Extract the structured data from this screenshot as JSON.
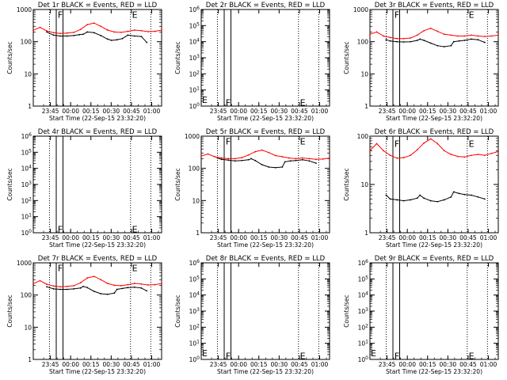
{
  "figure": {
    "x_axis_label": "Start Time (22-Sep-15 23:32:20)",
    "y_axis_label": "Counts/sec",
    "x_tick_labels": [
      "23:45",
      "00:00",
      "00:15",
      "00:30",
      "00:45",
      "01:00"
    ],
    "event_marker_labels": [
      "F",
      "E"
    ],
    "colors": {
      "events": "#000000",
      "lld": "#ff0000",
      "background": "#ffffff"
    }
  },
  "chart_data": [
    {
      "type": "line",
      "title": "Det 1r BLACK = Events, RED = LLD",
      "y_scale": "log",
      "ylim": [
        1,
        1000
      ],
      "y_tick_labels": [
        "1",
        "10",
        "100",
        "1000"
      ],
      "x_unit": "minutes since 23:32:20",
      "xlim": [
        0,
        95
      ],
      "dotted_lines_x": [
        12,
        72,
        87
      ],
      "solid_lines_x": [
        17,
        22
      ],
      "markers": [
        {
          "label": "F",
          "x": 17.5,
          "y": 700
        },
        {
          "label": "E",
          "x": 72.5,
          "y": 700
        }
      ],
      "series": [
        {
          "name": "Events",
          "color": "#000000",
          "x": [
            10,
            15,
            20,
            25,
            30,
            34,
            37,
            40,
            45,
            50,
            55,
            58,
            62,
            66,
            70,
            75,
            80,
            84
          ],
          "y": [
            200,
            160,
            150,
            150,
            155,
            165,
            170,
            200,
            190,
            155,
            120,
            110,
            115,
            125,
            160,
            150,
            145,
            95
          ]
        },
        {
          "name": "LLD",
          "color": "#ff0000",
          "x": [
            0,
            5,
            10,
            15,
            20,
            25,
            30,
            35,
            40,
            45,
            50,
            55,
            60,
            65,
            70,
            75,
            80,
            85,
            90,
            95
          ],
          "y": [
            225,
            280,
            215,
            190,
            180,
            185,
            195,
            240,
            340,
            380,
            300,
            230,
            200,
            195,
            210,
            230,
            220,
            205,
            210,
            230
          ]
        }
      ]
    },
    {
      "type": "line",
      "title": "Det 2r BLACK = Events, RED = LLD",
      "y_scale": "log",
      "ylim": [
        1,
        1000000
      ],
      "y_tick_labels": [
        "10^0",
        "10^1",
        "10^2",
        "10^3",
        "10^4",
        "10^5",
        "10^6"
      ],
      "x_unit": "minutes since 23:32:20",
      "xlim": [
        0,
        95
      ],
      "dotted_lines_x": [
        12,
        72,
        87
      ],
      "solid_lines_x": [
        17,
        22
      ],
      "markers": [
        {
          "label": "F",
          "x": 17.5,
          "y": 1.7
        },
        {
          "label": "E",
          "x": 72.5,
          "y": 1.7
        }
      ],
      "side_markers": [
        "E"
      ],
      "series": []
    },
    {
      "type": "line",
      "title": "Det 3r BLACK = Events, RED = LLD",
      "y_scale": "log",
      "ylim": [
        1,
        1000
      ],
      "y_tick_labels": [
        "1",
        "10",
        "100",
        "1000"
      ],
      "x_unit": "minutes since 23:32:20",
      "xlim": [
        0,
        95
      ],
      "dotted_lines_x": [
        12,
        72,
        87
      ],
      "solid_lines_x": [
        17,
        22
      ],
      "markers": [
        {
          "label": "F",
          "x": 17.5,
          "y": 700
        },
        {
          "label": "E",
          "x": 72.5,
          "y": 700
        }
      ],
      "series": [
        {
          "name": "Events",
          "color": "#000000",
          "x": [
            12,
            15,
            20,
            25,
            30,
            35,
            37,
            40,
            45,
            50,
            55,
            60,
            62,
            66,
            70,
            75,
            80,
            85
          ],
          "y": [
            115,
            105,
            100,
            98,
            100,
            110,
            120,
            110,
            90,
            75,
            70,
            75,
            100,
            105,
            110,
            120,
            115,
            95
          ]
        },
        {
          "name": "LLD",
          "color": "#ff0000",
          "x": [
            0,
            5,
            10,
            15,
            20,
            25,
            30,
            35,
            40,
            45,
            50,
            55,
            60,
            65,
            70,
            75,
            80,
            85,
            90,
            95
          ],
          "y": [
            170,
            200,
            150,
            135,
            125,
            125,
            130,
            160,
            220,
            260,
            210,
            170,
            160,
            150,
            150,
            160,
            150,
            145,
            150,
            160
          ]
        }
      ]
    },
    {
      "type": "line",
      "title": "Det 4r BLACK = Events, RED = LLD",
      "y_scale": "log",
      "ylim": [
        1,
        1000000
      ],
      "y_tick_labels": [
        "10^0",
        "10^1",
        "10^2",
        "10^3",
        "10^4",
        "10^5",
        "10^6"
      ],
      "x_unit": "minutes since 23:32:20",
      "xlim": [
        0,
        95
      ],
      "dotted_lines_x": [
        12,
        72,
        87
      ],
      "solid_lines_x": [
        17,
        22
      ],
      "markers": [
        {
          "label": "F",
          "x": 17.5,
          "y": 1.7
        },
        {
          "label": "E",
          "x": 72.5,
          "y": 1.7
        }
      ],
      "side_markers": [],
      "series": []
    },
    {
      "type": "line",
      "title": "Det 5r BLACK = Events, RED = LLD",
      "y_scale": "log",
      "ylim": [
        1,
        1000
      ],
      "y_tick_labels": [
        "1",
        "10",
        "100",
        "1000"
      ],
      "x_unit": "minutes since 23:32:20",
      "xlim": [
        0,
        95
      ],
      "dotted_lines_x": [
        12,
        72,
        87
      ],
      "solid_lines_x": [
        17,
        22
      ],
      "markers": [
        {
          "label": "F",
          "x": 17.5,
          "y": 700
        },
        {
          "label": "E",
          "x": 72.5,
          "y": 700
        }
      ],
      "series": [
        {
          "name": "Events",
          "color": "#000000",
          "x": [
            12,
            15,
            20,
            25,
            30,
            35,
            37,
            40,
            45,
            50,
            55,
            60,
            62,
            66,
            70,
            75,
            80,
            85
          ],
          "y": [
            210,
            190,
            180,
            170,
            175,
            185,
            200,
            175,
            130,
            110,
            105,
            110,
            160,
            170,
            175,
            185,
            170,
            145
          ]
        },
        {
          "name": "LLD",
          "color": "#ff0000",
          "x": [
            0,
            5,
            10,
            15,
            20,
            25,
            30,
            35,
            40,
            45,
            50,
            55,
            60,
            65,
            70,
            75,
            80,
            85,
            90,
            95
          ],
          "y": [
            240,
            280,
            230,
            210,
            200,
            200,
            215,
            260,
            330,
            370,
            310,
            250,
            230,
            210,
            200,
            210,
            200,
            190,
            195,
            210
          ]
        }
      ]
    },
    {
      "type": "line",
      "title": "Det 6r BLACK = Events, RED = LLD",
      "y_scale": "log",
      "ylim": [
        1,
        100
      ],
      "y_tick_labels": [
        "1",
        "10",
        "100"
      ],
      "x_unit": "minutes since 23:32:20",
      "xlim": [
        0,
        95
      ],
      "dotted_lines_x": [
        12,
        72,
        87
      ],
      "solid_lines_x": [
        17,
        22
      ],
      "markers": [
        {
          "label": "F",
          "x": 17.5,
          "y": 70
        },
        {
          "label": "E",
          "x": 72.5,
          "y": 70
        }
      ],
      "series": [
        {
          "name": "Events",
          "color": "#000000",
          "x": [
            12,
            15,
            20,
            25,
            30,
            35,
            37,
            40,
            45,
            50,
            55,
            60,
            62,
            66,
            70,
            75,
            80,
            85
          ],
          "y": [
            6,
            5,
            4.8,
            4.6,
            4.8,
            5.2,
            6,
            5.2,
            4.6,
            4.4,
            4.8,
            5.5,
            7,
            6.5,
            6.2,
            6,
            5.5,
            5
          ]
        },
        {
          "name": "LLD",
          "color": "#ff0000",
          "x": [
            0,
            5,
            10,
            15,
            20,
            25,
            30,
            35,
            40,
            45,
            50,
            55,
            60,
            65,
            70,
            75,
            80,
            85,
            90,
            95
          ],
          "y": [
            50,
            70,
            50,
            40,
            35,
            36,
            40,
            52,
            72,
            88,
            70,
            50,
            42,
            38,
            37,
            40,
            42,
            40,
            44,
            48
          ]
        }
      ]
    },
    {
      "type": "line",
      "title": "Det 7r BLACK = Events, RED = LLD",
      "y_scale": "log",
      "ylim": [
        1,
        1000
      ],
      "y_tick_labels": [
        "1",
        "10",
        "100",
        "1000"
      ],
      "x_unit": "minutes since 23:32:20",
      "xlim": [
        0,
        95
      ],
      "dotted_lines_x": [
        12,
        72,
        87
      ],
      "solid_lines_x": [
        17,
        22
      ],
      "markers": [
        {
          "label": "F",
          "x": 17.5,
          "y": 700
        },
        {
          "label": "E",
          "x": 72.5,
          "y": 700
        }
      ],
      "series": [
        {
          "name": "Events",
          "color": "#000000",
          "x": [
            10,
            15,
            20,
            25,
            30,
            35,
            37,
            40,
            45,
            50,
            55,
            60,
            62,
            66,
            70,
            75,
            80,
            84
          ],
          "y": [
            180,
            155,
            150,
            150,
            155,
            165,
            185,
            170,
            130,
            110,
            105,
            115,
            150,
            160,
            170,
            175,
            165,
            135
          ]
        },
        {
          "name": "LLD",
          "color": "#ff0000",
          "x": [
            0,
            5,
            10,
            15,
            20,
            25,
            30,
            35,
            40,
            45,
            50,
            55,
            60,
            65,
            70,
            75,
            80,
            85,
            90,
            95
          ],
          "y": [
            225,
            280,
            215,
            190,
            180,
            185,
            195,
            240,
            340,
            380,
            300,
            230,
            200,
            195,
            210,
            230,
            220,
            205,
            210,
            230
          ]
        }
      ]
    },
    {
      "type": "line",
      "title": "Det 8r BLACK = Events, RED = LLD",
      "y_scale": "log",
      "ylim": [
        1,
        1000000
      ],
      "y_tick_labels": [
        "10^0",
        "10^1",
        "10^2",
        "10^3",
        "10^4",
        "10^5",
        "10^6"
      ],
      "x_unit": "minutes since 23:32:20",
      "xlim": [
        0,
        95
      ],
      "dotted_lines_x": [
        12,
        72,
        87
      ],
      "solid_lines_x": [
        17,
        22
      ],
      "markers": [
        {
          "label": "F",
          "x": 17.5,
          "y": 1.7
        },
        {
          "label": "E",
          "x": 72.5,
          "y": 1.7
        }
      ],
      "side_markers": [
        "E"
      ],
      "series": []
    },
    {
      "type": "line",
      "title": "Det 9r BLACK = Events, RED = LLD",
      "y_scale": "log",
      "ylim": [
        1,
        1000000
      ],
      "y_tick_labels": [
        "10^0",
        "10^1",
        "10^2",
        "10^3",
        "10^4",
        "10^5",
        "10^6"
      ],
      "x_unit": "minutes since 23:32:20",
      "xlim": [
        0,
        95
      ],
      "dotted_lines_x": [
        12,
        72,
        87
      ],
      "solid_lines_x": [
        17,
        22
      ],
      "markers": [
        {
          "label": "F",
          "x": 17.5,
          "y": 1.7
        },
        {
          "label": "E",
          "x": 72.5,
          "y": 1.7
        }
      ],
      "side_markers": [
        "E"
      ],
      "series": []
    }
  ]
}
